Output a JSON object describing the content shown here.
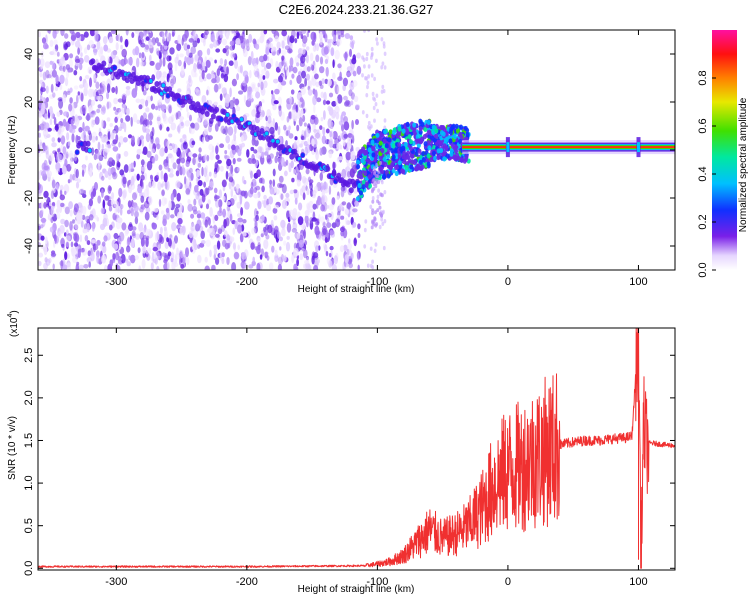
{
  "title": "C2E6.2024.233.21.36.G27",
  "colors": {
    "snr_line": "#f03030",
    "track_purple": "#5a18e0",
    "noise_purple": "#9c6cf0",
    "axis": "#000000",
    "background": "#ffffff"
  },
  "chart_data": [
    {
      "type": "heatmap",
      "name": "spectrogram",
      "xlabel": "Height of straight line (km)",
      "ylabel": "Frequency (Hz)",
      "xlim": [
        -360,
        128
      ],
      "ylim": [
        -50,
        50
      ],
      "x_ticks": [
        -300,
        -200,
        -100,
        0,
        100
      ],
      "x_tick_labels": [
        "-300",
        "-200",
        "-100",
        "0",
        "100"
      ],
      "y_ticks": [
        -40,
        -20,
        0,
        20,
        40
      ],
      "y_tick_labels": [
        "-40",
        "-20",
        "0",
        "20",
        "40"
      ],
      "colorbar": {
        "label": "Normalized spectral amplitude",
        "range": [
          0,
          1
        ],
        "ticks": [
          0.0,
          0.2,
          0.4,
          0.6,
          0.8
        ],
        "tick_labels": [
          "0.0",
          "0.2",
          "0.4",
          "0.6",
          "0.8"
        ],
        "colormap": "rainbow (white to purple to blue to cyan to green to yellow to red to magenta)"
      },
      "noise_region_x": [
        -360,
        -114
      ],
      "track": [
        {
          "x": -320,
          "y": 36
        },
        {
          "x": -280,
          "y": 29
        },
        {
          "x": -240,
          "y": 19
        },
        {
          "x": -200,
          "y": 10
        },
        {
          "x": -160,
          "y": -3
        },
        {
          "x": -120,
          "y": -15
        },
        {
          "x": -100,
          "y": -2
        },
        {
          "x": -60,
          "y": 3
        },
        {
          "x": -40,
          "y": 3
        },
        {
          "x": -20,
          "y": 1
        },
        {
          "x": 0,
          "y": 1
        },
        {
          "x": 50,
          "y": 1
        },
        {
          "x": 100,
          "y": 1
        },
        {
          "x": 128,
          "y": 1
        }
      ]
    },
    {
      "type": "line",
      "name": "snr",
      "xlabel": "Height of straight line (km)",
      "ylabel": "SNR (10 * v/v)",
      "y_multiplier_label": "(x10",
      "y_multiplier_exponent": "4",
      "y_multiplier_close": ")",
      "xlim": [
        -360,
        128
      ],
      "ylim": [
        -0.02,
        2.82
      ],
      "x_ticks": [
        -300,
        -200,
        -100,
        0,
        100
      ],
      "x_tick_labels": [
        "-300",
        "-200",
        "-100",
        "0",
        "100"
      ],
      "y_ticks": [
        0.0,
        0.5,
        1.0,
        1.5,
        2.0,
        2.5
      ],
      "y_tick_labels": [
        "0.0",
        "0.5",
        "1.0",
        "1.5",
        "2.0",
        "2.5"
      ],
      "series": [
        {
          "x": [
            -360,
            -300,
            -200,
            -110,
            -100,
            -90,
            -80,
            -70,
            -60,
            -50,
            -40,
            -30,
            -20,
            -10,
            0,
            10,
            20,
            30,
            40,
            50,
            60,
            70,
            80,
            90,
            95,
            100,
            102,
            104,
            106,
            110,
            120,
            128
          ],
          "y": [
            0.02,
            0.02,
            0.02,
            0.03,
            0.05,
            0.08,
            0.15,
            0.3,
            0.45,
            0.35,
            0.4,
            0.5,
            0.7,
            1.0,
            1.15,
            1.2,
            1.3,
            1.38,
            1.45,
            1.48,
            1.5,
            1.5,
            1.52,
            1.53,
            1.55,
            2.78,
            0.2,
            1.7,
            1.46,
            1.47,
            1.45,
            1.44
          ]
        }
      ]
    }
  ]
}
